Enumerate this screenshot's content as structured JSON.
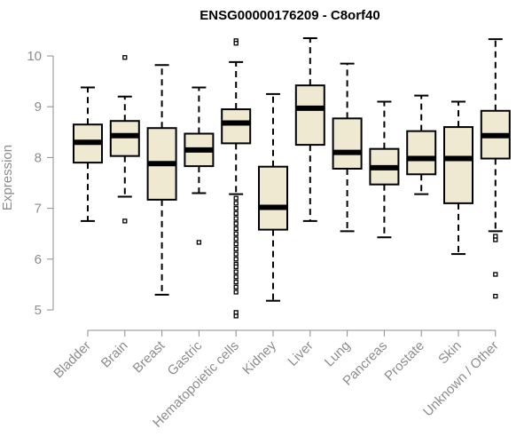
{
  "chart_data": {
    "type": "box",
    "title": "ENSG00000176209 - C8orf40",
    "xlabel": "",
    "ylabel": "Expression",
    "ylim": [
      4.8,
      10.45
    ],
    "yticks": [
      5,
      6,
      7,
      8,
      9,
      10
    ],
    "grid": false,
    "box_fill": "#efe9d2",
    "box_stroke": "#000000",
    "categories": [
      "Bladder",
      "Brain",
      "Breast",
      "Gastric",
      "Hematopoietic cells",
      "Kidney",
      "Liver",
      "Lung",
      "Pancreas",
      "Prostate",
      "Skin",
      "Unknown / Other"
    ],
    "boxes": [
      {
        "whisker_low": 6.75,
        "q1": 7.9,
        "median": 8.3,
        "q3": 8.65,
        "whisker_high": 9.38,
        "outliers": []
      },
      {
        "whisker_low": 7.23,
        "q1": 8.03,
        "median": 8.43,
        "q3": 8.72,
        "whisker_high": 9.2,
        "outliers": [
          9.97,
          6.75
        ]
      },
      {
        "whisker_low": 5.3,
        "q1": 7.17,
        "median": 7.88,
        "q3": 8.58,
        "whisker_high": 9.82,
        "outliers": []
      },
      {
        "whisker_low": 7.3,
        "q1": 7.83,
        "median": 8.15,
        "q3": 8.47,
        "whisker_high": 9.38,
        "outliers": [
          6.33
        ]
      },
      {
        "whisker_low": 7.28,
        "q1": 8.28,
        "median": 8.68,
        "q3": 8.95,
        "whisker_high": 9.88,
        "outliers": [
          10.3,
          10.25,
          7.2,
          7.1,
          7.0,
          6.9,
          6.8,
          6.7,
          6.6,
          6.5,
          6.4,
          6.3,
          6.2,
          6.1,
          6.0,
          5.9,
          5.85,
          5.75,
          5.65,
          5.55,
          5.45,
          5.35,
          4.95,
          4.88
        ]
      },
      {
        "whisker_low": 5.18,
        "q1": 6.58,
        "median": 7.02,
        "q3": 7.82,
        "whisker_high": 9.25,
        "outliers": []
      },
      {
        "whisker_low": 6.75,
        "q1": 8.25,
        "median": 8.97,
        "q3": 9.42,
        "whisker_high": 10.35,
        "outliers": []
      },
      {
        "whisker_low": 6.55,
        "q1": 7.78,
        "median": 8.1,
        "q3": 8.77,
        "whisker_high": 9.85,
        "outliers": []
      },
      {
        "whisker_low": 6.43,
        "q1": 7.47,
        "median": 7.8,
        "q3": 8.17,
        "whisker_high": 9.1,
        "outliers": []
      },
      {
        "whisker_low": 7.28,
        "q1": 7.67,
        "median": 7.98,
        "q3": 8.52,
        "whisker_high": 9.22,
        "outliers": []
      },
      {
        "whisker_low": 6.1,
        "q1": 7.1,
        "median": 7.98,
        "q3": 8.6,
        "whisker_high": 9.1,
        "outliers": []
      },
      {
        "whisker_low": 6.55,
        "q1": 7.98,
        "median": 8.43,
        "q3": 8.92,
        "whisker_high": 10.33,
        "outliers": [
          6.45,
          6.38,
          5.7,
          5.27
        ]
      }
    ]
  }
}
